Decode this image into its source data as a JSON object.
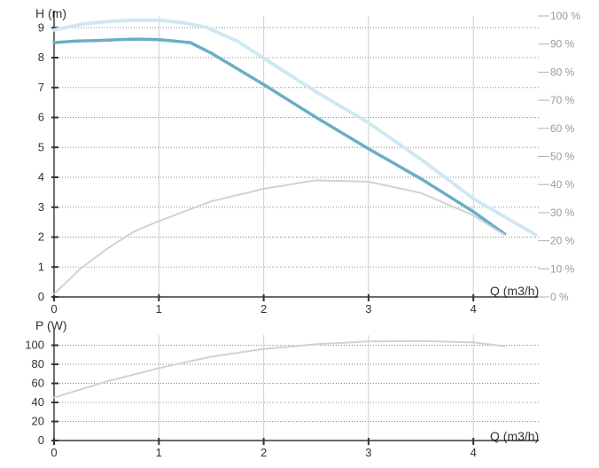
{
  "chart_data": [
    {
      "type": "line",
      "panel": "head",
      "ylabel": "H (m)",
      "xlabel": "Q (m3/h)",
      "xlim": [
        0,
        4.6
      ],
      "ylim": [
        0,
        9.3
      ],
      "xticks": [
        "0",
        "1",
        "2",
        "3",
        "4"
      ],
      "yticks": [
        "0",
        "1",
        "2",
        "3",
        "4",
        "5",
        "6",
        "7",
        "8",
        "9"
      ],
      "y2ticks": [
        "0 %",
        "10 %",
        "20 %",
        "30 %",
        "40 %",
        "50 %",
        "60 %",
        "70 %",
        "80 %",
        "90 %",
        "100 %"
      ],
      "y2lim": [
        0,
        100
      ],
      "grid": true,
      "series": [
        {
          "axis": "left",
          "color": "#6aaec6",
          "style": "solid",
          "x": [
            0,
            0.2,
            0.4,
            0.6,
            0.8,
            1.0,
            1.1,
            1.3,
            1.5,
            2.0,
            2.5,
            3.0,
            3.5,
            4.0,
            4.3
          ],
          "y": [
            8.5,
            8.55,
            8.57,
            8.6,
            8.62,
            8.6,
            8.57,
            8.5,
            8.15,
            7.1,
            6.0,
            4.95,
            3.95,
            2.85,
            2.1
          ]
        },
        {
          "axis": "right",
          "color": "#cfe8f2",
          "style": "dotted",
          "x": [
            0,
            0.25,
            0.5,
            0.75,
            1.0,
            1.25,
            1.45,
            1.75,
            2.0,
            2.5,
            3.0,
            3.5,
            4.0,
            4.6
          ],
          "y": [
            95,
            97,
            98,
            98.5,
            98.5,
            97.5,
            96,
            91,
            85,
            73,
            62,
            49,
            35,
            22
          ]
        },
        {
          "axis": "right",
          "color": "#d2d2d2",
          "style": "solid",
          "x": [
            0,
            0.25,
            0.5,
            0.75,
            1.0,
            1.5,
            2.0,
            2.5,
            3.0,
            3.5,
            4.0,
            4.3
          ],
          "y": [
            1,
            10,
            17,
            23,
            27,
            34,
            38.5,
            41.5,
            41,
            37,
            29,
            22
          ]
        }
      ]
    },
    {
      "type": "line",
      "panel": "power",
      "ylabel": "P (W)",
      "xlabel": "Q (m3/h)",
      "xlim": [
        0,
        4.6
      ],
      "ylim": [
        0,
        110
      ],
      "xticks": [
        "0",
        "1",
        "2",
        "3",
        "4"
      ],
      "yticks": [
        "0",
        "20",
        "40",
        "60",
        "80",
        "100"
      ],
      "grid": true,
      "series": [
        {
          "color": "#d2d2d2",
          "style": "solid",
          "x": [
            0,
            0.5,
            1.0,
            1.5,
            2.0,
            2.5,
            3.0,
            3.5,
            4.0,
            4.3
          ],
          "y": [
            45,
            62,
            76,
            88,
            96,
            101,
            104,
            104.5,
            103,
            99
          ]
        }
      ]
    }
  ]
}
